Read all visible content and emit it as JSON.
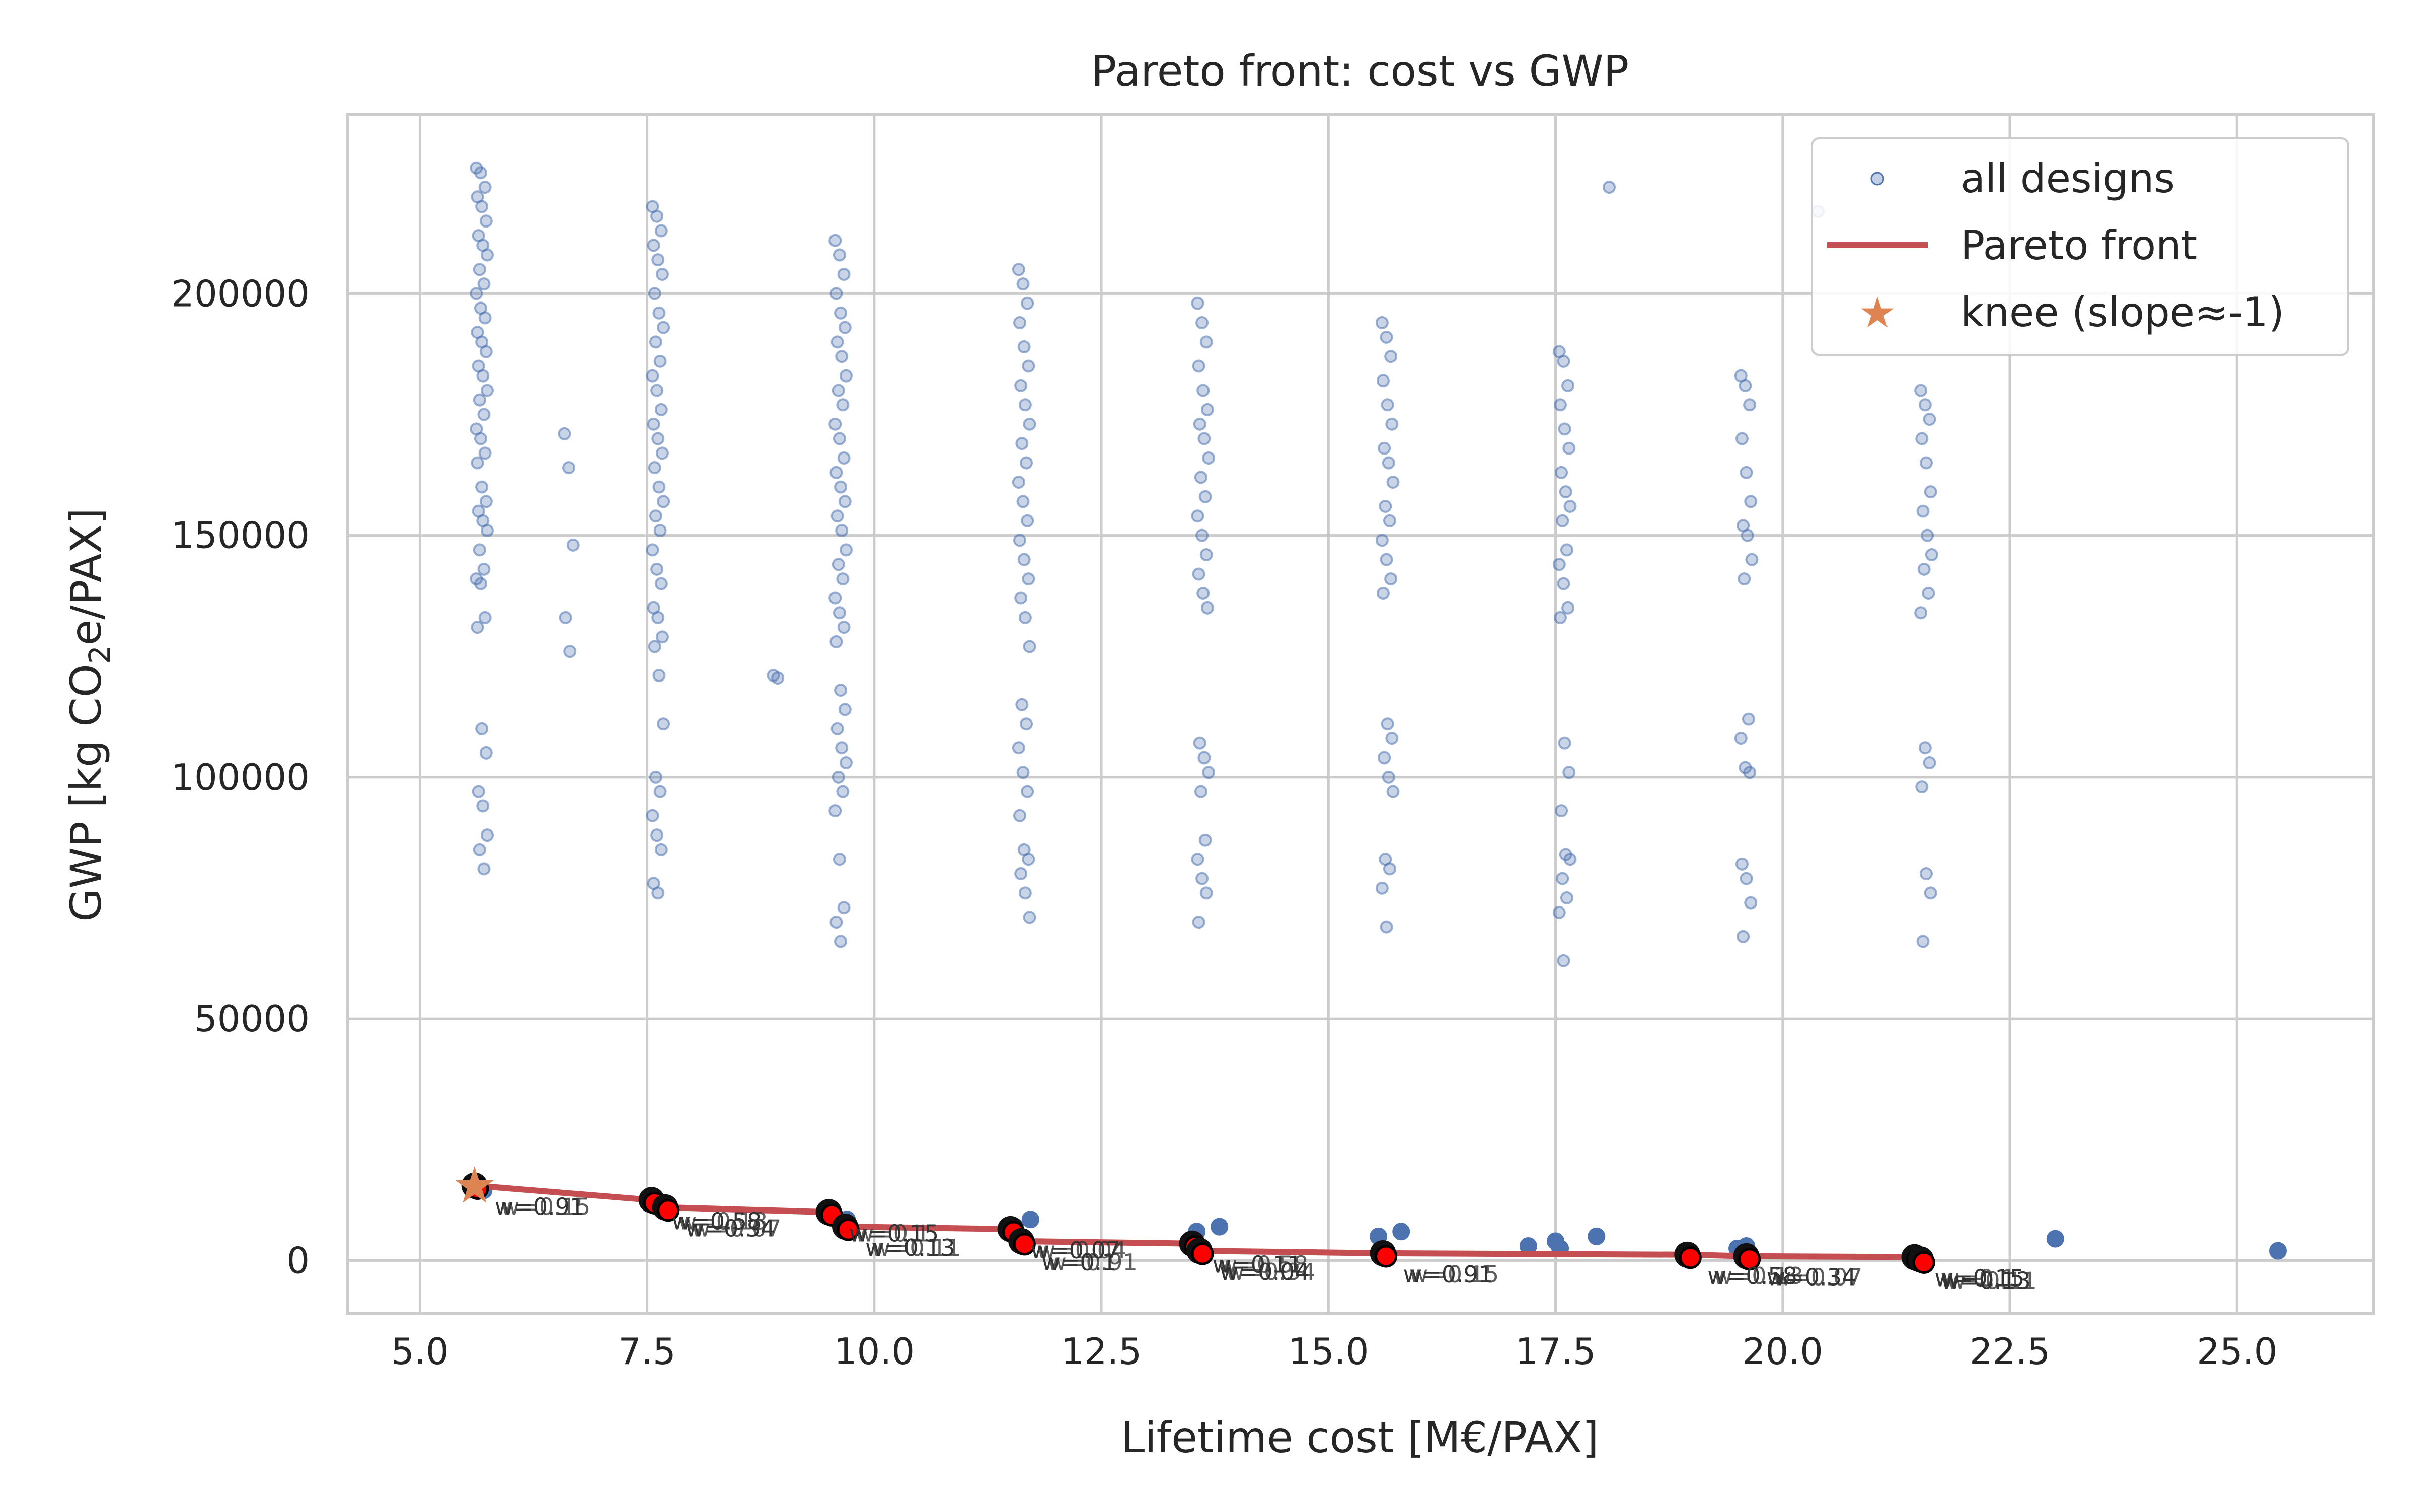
{
  "chart_data": {
    "type": "scatter",
    "title": "Pareto front: cost vs GWP",
    "xlabel": "Lifetime cost [M€/PAX]",
    "ylabel_parts": [
      "GWP [kg CO",
      "2",
      "e/PAX]"
    ],
    "xlim": [
      4.2,
      26.5
    ],
    "ylim": [
      -11000,
      237000
    ],
    "xticks": [
      "5.0",
      "7.5",
      "10.0",
      "12.5",
      "15.0",
      "17.5",
      "20.0",
      "22.5",
      "25.0"
    ],
    "xtick_values": [
      5.0,
      7.5,
      10.0,
      12.5,
      15.0,
      17.5,
      20.0,
      22.5,
      25.0
    ],
    "yticks": [
      "0",
      "50000",
      "100000",
      "150000",
      "200000"
    ],
    "ytick_values": [
      0,
      50000,
      100000,
      150000,
      200000
    ],
    "grid": true,
    "legend_position": "top-right",
    "legend": [
      {
        "label": "all designs",
        "marker": "point"
      },
      {
        "label": "Pareto front",
        "marker": "line"
      },
      {
        "label": "knee (slope≈-1)",
        "marker": "star"
      }
    ],
    "colors": {
      "all_designs": "#4c72b0",
      "pareto_line": "#c44e52",
      "pareto_points": "#ff0000",
      "knee": "#dd8452",
      "grid": "#cccccc"
    },
    "series": [
      {
        "name": "all designs",
        "clusters": [
          {
            "x": 5.68,
            "y_values": [
              226000,
              225000,
              222000,
              220000,
              218000,
              215000,
              212000,
              210000,
              208000,
              205000,
              202000,
              200000,
              197000,
              195000,
              192000,
              190000,
              188000,
              185000,
              183000,
              180000,
              178000,
              175000,
              172000,
              170000,
              167000,
              165000,
              160000,
              157000,
              155000,
              153000,
              151000,
              147000,
              143000,
              141000,
              140000,
              133000,
              131000,
              110000,
              105000,
              97000,
              94000,
              88000,
              85000,
              81000
            ]
          },
          {
            "x": 6.65,
            "y_values": [
              171000,
              164000,
              148000,
              133000,
              126000
            ]
          },
          {
            "x": 7.62,
            "y_values": [
              218000,
              216000,
              213000,
              210000,
              207000,
              204000,
              200000,
              196000,
              193000,
              190000,
              186000,
              183000,
              180000,
              176000,
              173000,
              170000,
              167000,
              164000,
              160000,
              157000,
              154000,
              151000,
              147000,
              143000,
              140000,
              135000,
              133000,
              129000,
              127000,
              121000,
              111000,
              100000,
              97000,
              92000,
              88000,
              85000,
              78000,
              76000
            ]
          },
          {
            "x": 8.95,
            "y_values": [
              121000,
              120500
            ]
          },
          {
            "x": 9.63,
            "y_values": [
              211000,
              208000,
              204000,
              200000,
              196000,
              193000,
              190000,
              187000,
              183000,
              180000,
              177000,
              173000,
              170000,
              166000,
              163000,
              160000,
              157000,
              154000,
              151000,
              147000,
              144000,
              141000,
              137000,
              134000,
              131000,
              128000,
              118000,
              114000,
              110000,
              106000,
              103000,
              100000,
              97000,
              93000,
              83000,
              73000,
              70000,
              66000
            ]
          },
          {
            "x": 11.65,
            "y_values": [
              205000,
              202000,
              198000,
              194000,
              189000,
              185000,
              181000,
              177000,
              173000,
              169000,
              165000,
              161000,
              157000,
              153000,
              149000,
              145000,
              141000,
              137000,
              133000,
              127000,
              115000,
              111000,
              106000,
              101000,
              97000,
              92000,
              85000,
              83000,
              80000,
              76000,
              71000
            ]
          },
          {
            "x": 13.62,
            "y_values": [
              198000,
              194000,
              190000,
              185000,
              180000,
              176000,
              173000,
              170000,
              166000,
              162000,
              158000,
              154000,
              150000,
              146000,
              142000,
              138000,
              135000,
              107000,
              104000,
              101000,
              97000,
              87000,
              83000,
              79000,
              76000,
              70000
            ]
          },
          {
            "x": 15.65,
            "y_values": [
              194000,
              191000,
              187000,
              182000,
              177000,
              173000,
              168000,
              165000,
              161000,
              156000,
              153000,
              149000,
              145000,
              141000,
              138000,
              111000,
              108000,
              104000,
              100000,
              97000,
              83000,
              81000,
              77000,
              69000
            ]
          },
          {
            "x": 17.6,
            "y_values": [
              188000,
              186000,
              181000,
              177000,
              172000,
              168000,
              163000,
              159000,
              156000,
              153000,
              147000,
              144000,
              140000,
              135000,
              133000,
              107000,
              101000,
              93000,
              84000,
              83000,
              79000,
              75000,
              72000,
              62000
            ]
          },
          {
            "x": 19.6,
            "y_values": [
              183000,
              181000,
              177000,
              170000,
              163000,
              157000,
              152000,
              150000,
              145000,
              141000,
              112000,
              108000,
              102000,
              101000,
              82000,
              79000,
              74000,
              67000
            ]
          },
          {
            "x": 21.58,
            "y_values": [
              180000,
              177000,
              174000,
              170000,
              165000,
              159000,
              155000,
              150000,
              146000,
              143000,
              138000,
              134000,
              106000,
              103000,
              98000,
              80000,
              76000,
              66000
            ]
          },
          {
            "x": 18.15,
            "y_values": [
              222000
            ]
          },
          {
            "x": 20.45,
            "y_values": [
              217000
            ]
          }
        ],
        "low_points": [
          {
            "x": 5.62,
            "y": 16000
          },
          {
            "x": 5.7,
            "y": 14500
          },
          {
            "x": 7.6,
            "y": 12500
          },
          {
            "x": 7.7,
            "y": 11500
          },
          {
            "x": 9.55,
            "y": 10000
          },
          {
            "x": 9.7,
            "y": 8500
          },
          {
            "x": 11.55,
            "y": 7000
          },
          {
            "x": 11.72,
            "y": 8500
          },
          {
            "x": 13.55,
            "y": 6000
          },
          {
            "x": 13.8,
            "y": 7000
          },
          {
            "x": 15.55,
            "y": 5000
          },
          {
            "x": 15.8,
            "y": 6000
          },
          {
            "x": 17.2,
            "y": 3000
          },
          {
            "x": 17.5,
            "y": 4000
          },
          {
            "x": 17.55,
            "y": 2500
          },
          {
            "x": 17.95,
            "y": 5000
          },
          {
            "x": 19.5,
            "y": 2500
          },
          {
            "x": 19.6,
            "y": 3000
          },
          {
            "x": 23.0,
            "y": 4500
          },
          {
            "x": 25.45,
            "y": 2000
          }
        ]
      },
      {
        "name": "Pareto front",
        "points": [
          {
            "x": 5.6,
            "y": 15500
          },
          {
            "x": 7.55,
            "y": 12500
          },
          {
            "x": 7.7,
            "y": 11000
          },
          {
            "x": 9.5,
            "y": 10000
          },
          {
            "x": 9.68,
            "y": 7000
          },
          {
            "x": 11.5,
            "y": 6500
          },
          {
            "x": 11.62,
            "y": 4000
          },
          {
            "x": 13.5,
            "y": 3500
          },
          {
            "x": 13.58,
            "y": 2000
          },
          {
            "x": 15.6,
            "y": 1500
          },
          {
            "x": 18.95,
            "y": 1200
          },
          {
            "x": 19.6,
            "y": 900
          },
          {
            "x": 21.45,
            "y": 700
          },
          {
            "x": 21.52,
            "y": 200
          }
        ]
      }
    ],
    "knee": {
      "x": 5.6,
      "y": 15500
    },
    "annotations": [
      "w=0.91",
      "w=0.58",
      "w=0.34",
      "w=0.15",
      "w=0.13",
      "w=0.07",
      "w=0.1",
      "w=0.11",
      "w=0.04"
    ]
  }
}
